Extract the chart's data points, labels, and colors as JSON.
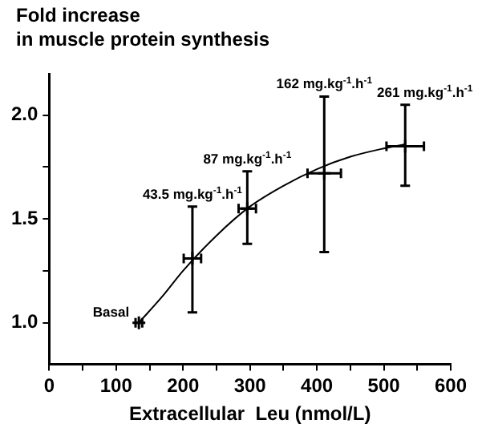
{
  "chart_data": {
    "type": "scatter",
    "title": "Fold increase\nin muscle protein synthesis",
    "xlabel": "Extracellular  Leu (nmol/L)",
    "xlim": [
      0,
      600
    ],
    "xticks": [
      0,
      {
        "value": 50,
        "label": null
      },
      100,
      {
        "value": 150,
        "label": null
      },
      200,
      {
        "value": 250,
        "label": null
      },
      300,
      {
        "value": 350,
        "label": null
      },
      400,
      {
        "value": 450,
        "label": null
      },
      500,
      {
        "value": 550,
        "label": null
      },
      600
    ],
    "ylim": [
      0.8,
      2.2
    ],
    "yticks": [
      {
        "value": 1,
        "label": "1.0"
      },
      {
        "value": 1.25,
        "label": null
      },
      {
        "value": 1.5,
        "label": "1.5"
      },
      {
        "value": 1.75,
        "label": null
      },
      {
        "value": 2,
        "label": "2.0"
      }
    ],
    "grid": false,
    "legend": false,
    "series": [
      {
        "type": "line",
        "color": "#000000",
        "x": [
          134,
          170,
          200,
          250,
          300,
          350,
          400,
          450,
          500,
          532
        ],
        "values": [
          1.0,
          1.13,
          1.25,
          1.42,
          1.56,
          1.66,
          1.74,
          1.8,
          1.84,
          1.86
        ]
      },
      {
        "color": "#000000",
        "marker": "cross",
        "x": [
          134,
          214,
          296,
          411,
          532
        ],
        "values": [
          1.0,
          1.31,
          1.55,
          1.72,
          1.85
        ],
        "errors": [
          null,
          [
            1.05,
            1.56
          ],
          [
            1.38,
            1.73
          ],
          [
            1.34,
            2.09
          ],
          [
            1.66,
            2.05
          ]
        ],
        "xerrors": [
          5,
          13,
          13,
          25,
          28
        ]
      }
    ],
    "annotations": [
      {
        "text": "Basal",
        "x": 134,
        "y": 1.0
      },
      {
        "text": "43.5 mg.kg$^{-1}$.h$^{-1}$",
        "x": 214,
        "y": 1.56
      },
      {
        "text": "87 mg.kg$^{-1}$.h$^{-1}$",
        "x": 296,
        "y": 1.73
      },
      {
        "text": "162 mg.kg$^{-1}$.h$^{-1}$",
        "x": 411,
        "y": 2.09
      },
      {
        "text": "261 mg.kg$^{-1}$.h$^{-1}$",
        "x": 532,
        "y": 2.05
      }
    ]
  }
}
